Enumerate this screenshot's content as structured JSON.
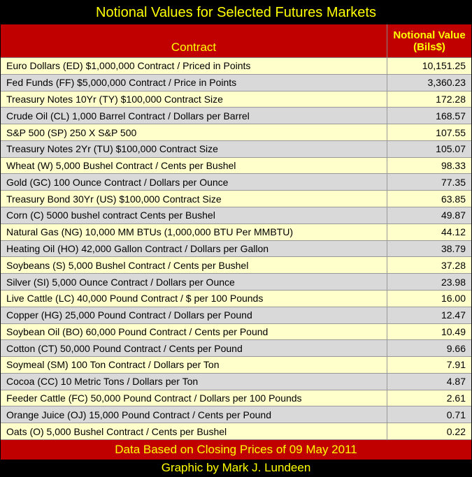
{
  "header": {
    "title": "Notional Values for Selected Futures Markets"
  },
  "table": {
    "columns": [
      "Contract",
      "Notional Value (Bils$)"
    ],
    "rows": [
      [
        "Euro Dollars (ED) $1,000,000 Contract / Priced in Points",
        "10,151.25"
      ],
      [
        "Fed Funds (FF) $5,000,000 Contract / Price in Points",
        "3,360.23"
      ],
      [
        "Treasury Notes 10Yr (TY) $100,000 Contract Size",
        "172.28"
      ],
      [
        "Crude Oil (CL) 1,000 Barrel Contract / Dollars per Barrel",
        "168.57"
      ],
      [
        "S&P 500 (SP) 250 X S&P 500",
        "107.55"
      ],
      [
        "Treasury Notes 2Yr (TU) $100,000 Contract Size",
        "105.07"
      ],
      [
        "Wheat (W) 5,000 Bushel Contract / Cents per Bushel",
        "98.33"
      ],
      [
        "Gold (GC) 100 Ounce Contract / Dollars per Ounce",
        "77.35"
      ],
      [
        "Treasury Bond 30Yr (US) $100,000 Contract Size",
        "63.85"
      ],
      [
        "Corn (C) 5000 bushel contract Cents per Bushel",
        "49.87"
      ],
      [
        "Natural Gas (NG) 10,000 MM BTUs (1,000,000 BTU Per MMBTU)",
        "44.12"
      ],
      [
        "Heating Oil (HO) 42,000 Gallon Contract / Dollars per Gallon",
        "38.79"
      ],
      [
        "Soybeans (S) 5,000 Bushel Contract / Cents per Bushel",
        "37.28"
      ],
      [
        "Silver (SI) 5,000 Ounce Contract / Dollars per Ounce",
        "23.98"
      ],
      [
        "Live Cattle (LC) 40,000 Pound Contract / $ per 100 Pounds",
        "16.00"
      ],
      [
        "Copper (HG) 25,000 Pound Contract / Dollars per Pound",
        "12.47"
      ],
      [
        "Soybean Oil (BO) 60,000 Pound Contract / Cents per Pound",
        "10.49"
      ],
      [
        "Cotton (CT) 50,000 Pound Contract / Cents per Pound",
        "9.66"
      ],
      [
        "Soymeal (SM) 100 Ton Contract / Dollars per Ton",
        "7.91"
      ],
      [
        "Cocoa (CC) 10 Metric Tons / Dollars per Ton",
        "4.87"
      ],
      [
        "Feeder Cattle (FC) 50,000 Pound Contract / Dollars per 100 Pounds",
        "2.61"
      ],
      [
        "Orange Juice (OJ) 15,000 Pound Contract / Cents per Pound",
        "0.71"
      ],
      [
        "Oats (O) 5,000 Bushel Contract / Cents per Bushel",
        "0.22"
      ]
    ]
  },
  "footer": {
    "note": "Data Based on Closing Prices of 09 May 2011",
    "credit": "Graphic by Mark J. Lundeen"
  }
}
